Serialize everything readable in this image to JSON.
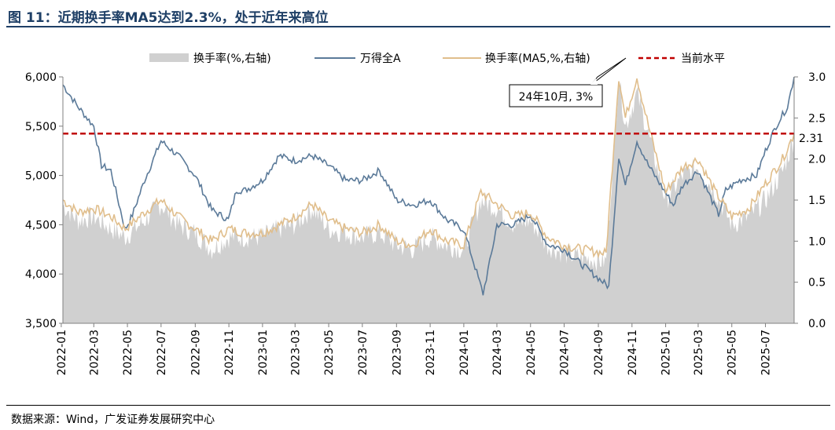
{
  "title": "图 11：近期换手率MA5达到2.3%，处于近年来高位",
  "source": "数据来源：Wind，广发证券发展研究中心",
  "colors": {
    "turnover_area": "#d0d0d0",
    "index_line": "#5b7a99",
    "ma5_line": "#e0be8c",
    "current_level": "#c00000",
    "title": "#1e3f66"
  },
  "chart_data": {
    "type": "line",
    "legend_position": "top",
    "grid": false,
    "x_tick_labels": [
      "2022-01",
      "2022-03",
      "2022-05",
      "2022-07",
      "2022-09",
      "2022-11",
      "2023-01",
      "2023-03",
      "2023-05",
      "2023-07",
      "2023-09",
      "2023-11",
      "2024-01",
      "2024-03",
      "2024-05",
      "2024-07",
      "2024-09",
      "2024-11",
      "2025-01",
      "2025-03",
      "2025-05",
      "2025-07"
    ],
    "xlim": [
      "2022-01-04",
      "2025-08-22"
    ],
    "y_left": {
      "lim": [
        3500,
        6000
      ],
      "ticks": [
        "3,500",
        "4,000",
        "4,500",
        "5,000",
        "5,500",
        "6,000"
      ]
    },
    "y_right": {
      "lim": [
        0.0,
        3.0
      ],
      "ticks": [
        "0.0",
        "0.5",
        "1.0",
        "1.5",
        "2.0",
        "2.5",
        "3.0"
      ]
    },
    "series": [
      {
        "name": "换手率(%,右轴)",
        "type": "area",
        "axis": "right",
        "points": [
          [
            "2022-01-04",
            1.44
          ],
          [
            "2022-02-01",
            1.25
          ],
          [
            "2022-03-01",
            1.3
          ],
          [
            "2022-04-01",
            1.15
          ],
          [
            "2022-04-27",
            1.05
          ],
          [
            "2022-06-01",
            1.25
          ],
          [
            "2022-07-01",
            1.45
          ],
          [
            "2022-08-01",
            1.2
          ],
          [
            "2022-09-01",
            1.1
          ],
          [
            "2022-10-01",
            0.9
          ],
          [
            "2022-11-01",
            1.05
          ],
          [
            "2022-12-01",
            1.05
          ],
          [
            "2023-01-01",
            1.05
          ],
          [
            "2023-02-01",
            1.15
          ],
          [
            "2023-03-01",
            1.2
          ],
          [
            "2023-04-01",
            1.4
          ],
          [
            "2023-05-01",
            1.15
          ],
          [
            "2023-06-01",
            1.1
          ],
          [
            "2023-07-01",
            1.05
          ],
          [
            "2023-08-01",
            1.1
          ],
          [
            "2023-09-01",
            0.95
          ],
          [
            "2023-10-01",
            0.9
          ],
          [
            "2023-11-01",
            1.05
          ],
          [
            "2023-12-01",
            0.95
          ],
          [
            "2024-01-01",
            0.9
          ],
          [
            "2024-02-01",
            1.5
          ],
          [
            "2024-03-01",
            1.4
          ],
          [
            "2024-04-01",
            1.2
          ],
          [
            "2024-05-01",
            1.25
          ],
          [
            "2024-06-01",
            0.95
          ],
          [
            "2024-07-01",
            0.85
          ],
          [
            "2024-08-01",
            0.8
          ],
          [
            "2024-09-15",
            0.75
          ],
          [
            "2024-10-08",
            3.0
          ],
          [
            "2024-10-20",
            2.4
          ],
          [
            "2024-11-10",
            2.8
          ],
          [
            "2024-12-01",
            2.3
          ],
          [
            "2025-01-01",
            1.5
          ],
          [
            "2025-02-01",
            1.8
          ],
          [
            "2025-03-01",
            1.9
          ],
          [
            "2025-04-01",
            1.6
          ],
          [
            "2025-05-01",
            1.2
          ],
          [
            "2025-06-01",
            1.3
          ],
          [
            "2025-07-01",
            1.5
          ],
          [
            "2025-08-01",
            1.85
          ],
          [
            "2025-08-22",
            2.25
          ]
        ]
      },
      {
        "name": "万得全A",
        "type": "line",
        "axis": "left",
        "points": [
          [
            "2022-01-04",
            5920
          ],
          [
            "2022-01-31",
            5700
          ],
          [
            "2022-03-01",
            5500
          ],
          [
            "2022-03-15",
            5100
          ],
          [
            "2022-04-01",
            5050
          ],
          [
            "2022-04-27",
            4450
          ],
          [
            "2022-05-10",
            4600
          ],
          [
            "2022-06-01",
            4950
          ],
          [
            "2022-07-01",
            5350
          ],
          [
            "2022-08-01",
            5200
          ],
          [
            "2022-09-01",
            5000
          ],
          [
            "2022-10-01",
            4650
          ],
          [
            "2022-10-31",
            4550
          ],
          [
            "2022-11-15",
            4850
          ],
          [
            "2022-12-01",
            4850
          ],
          [
            "2023-01-01",
            4950
          ],
          [
            "2023-01-31",
            5200
          ],
          [
            "2023-03-01",
            5150
          ],
          [
            "2023-04-01",
            5200
          ],
          [
            "2023-05-01",
            5100
          ],
          [
            "2023-06-01",
            4950
          ],
          [
            "2023-07-01",
            4950
          ],
          [
            "2023-08-01",
            5050
          ],
          [
            "2023-09-01",
            4750
          ],
          [
            "2023-10-01",
            4700
          ],
          [
            "2023-11-01",
            4750
          ],
          [
            "2023-12-01",
            4550
          ],
          [
            "2024-01-01",
            4450
          ],
          [
            "2024-02-05",
            3800
          ],
          [
            "2024-02-20",
            4200
          ],
          [
            "2024-03-01",
            4500
          ],
          [
            "2024-04-01",
            4500
          ],
          [
            "2024-05-01",
            4600
          ],
          [
            "2024-06-01",
            4300
          ],
          [
            "2024-07-01",
            4250
          ],
          [
            "2024-08-01",
            4100
          ],
          [
            "2024-09-20",
            3870
          ],
          [
            "2024-10-08",
            5200
          ],
          [
            "2024-10-20",
            4900
          ],
          [
            "2024-11-10",
            5350
          ],
          [
            "2024-12-01",
            5100
          ],
          [
            "2025-01-15",
            4700
          ],
          [
            "2025-02-01",
            4900
          ],
          [
            "2025-03-01",
            5050
          ],
          [
            "2025-04-07",
            4600
          ],
          [
            "2025-04-20",
            4850
          ],
          [
            "2025-05-15",
            4950
          ],
          [
            "2025-06-15",
            5000
          ],
          [
            "2025-07-01",
            5250
          ],
          [
            "2025-07-20",
            5500
          ],
          [
            "2025-08-10",
            5700
          ],
          [
            "2025-08-22",
            6000
          ]
        ]
      },
      {
        "name": "换手率(MA5,%,右轴)",
        "type": "line",
        "axis": "right",
        "points": [
          [
            "2022-01-04",
            1.5
          ],
          [
            "2022-02-01",
            1.35
          ],
          [
            "2022-03-01",
            1.4
          ],
          [
            "2022-04-01",
            1.3
          ],
          [
            "2022-04-27",
            1.15
          ],
          [
            "2022-06-01",
            1.35
          ],
          [
            "2022-07-01",
            1.5
          ],
          [
            "2022-08-01",
            1.3
          ],
          [
            "2022-09-01",
            1.15
          ],
          [
            "2022-10-01",
            1.0
          ],
          [
            "2022-11-01",
            1.15
          ],
          [
            "2022-12-01",
            1.1
          ],
          [
            "2023-01-01",
            1.1
          ],
          [
            "2023-02-01",
            1.2
          ],
          [
            "2023-03-01",
            1.3
          ],
          [
            "2023-04-01",
            1.45
          ],
          [
            "2023-05-01",
            1.25
          ],
          [
            "2023-06-01",
            1.15
          ],
          [
            "2023-07-01",
            1.1
          ],
          [
            "2023-08-01",
            1.2
          ],
          [
            "2023-09-01",
            1.0
          ],
          [
            "2023-10-01",
            0.95
          ],
          [
            "2023-11-01",
            1.15
          ],
          [
            "2023-12-01",
            1.0
          ],
          [
            "2024-01-01",
            0.95
          ],
          [
            "2024-02-01",
            1.6
          ],
          [
            "2024-03-01",
            1.45
          ],
          [
            "2024-04-01",
            1.3
          ],
          [
            "2024-05-01",
            1.35
          ],
          [
            "2024-06-01",
            1.05
          ],
          [
            "2024-07-01",
            0.95
          ],
          [
            "2024-08-01",
            0.9
          ],
          [
            "2024-09-15",
            0.85
          ],
          [
            "2024-10-08",
            3.0
          ],
          [
            "2024-10-20",
            2.5
          ],
          [
            "2024-11-10",
            3.0
          ],
          [
            "2024-12-01",
            2.4
          ],
          [
            "2025-01-01",
            1.6
          ],
          [
            "2025-02-01",
            1.9
          ],
          [
            "2025-03-01",
            2.0
          ],
          [
            "2025-04-01",
            1.6
          ],
          [
            "2025-05-01",
            1.3
          ],
          [
            "2025-06-01",
            1.4
          ],
          [
            "2025-07-01",
            1.7
          ],
          [
            "2025-08-01",
            2.0
          ],
          [
            "2025-08-22",
            2.31
          ]
        ]
      },
      {
        "name": "当前水平",
        "type": "hline",
        "axis": "right",
        "value": 2.31
      }
    ],
    "annotations": [
      {
        "text": "24年10月, 3%",
        "x": "2024-10-08",
        "y": 3.0,
        "axis": "right"
      },
      {
        "text": "2.31",
        "y": 2.31,
        "axis": "right"
      }
    ]
  }
}
